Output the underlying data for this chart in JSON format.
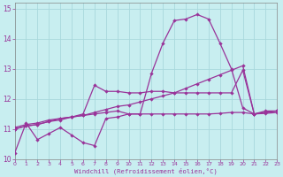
{
  "bg_color": "#c8eef0",
  "grid_color": "#a8d8dc",
  "line_color": "#993399",
  "xlabel": "Windchill (Refroidissement éolien,°C)",
  "xlim": [
    0,
    23
  ],
  "ylim": [
    10,
    15.2
  ],
  "xticks": [
    0,
    1,
    2,
    3,
    4,
    5,
    6,
    7,
    8,
    9,
    10,
    11,
    12,
    13,
    14,
    15,
    16,
    17,
    18,
    19,
    20,
    21,
    22,
    23
  ],
  "yticks": [
    10,
    11,
    12,
    13,
    14,
    15
  ],
  "curve1_x": [
    0,
    1,
    2,
    3,
    4,
    5,
    6,
    7,
    8,
    9,
    10,
    11,
    12,
    13,
    14,
    15,
    16,
    17,
    18,
    19,
    20,
    21,
    22,
    23
  ],
  "curve1_y": [
    10.2,
    11.2,
    10.65,
    10.85,
    11.05,
    10.8,
    10.55,
    10.45,
    11.35,
    11.4,
    11.5,
    11.5,
    12.85,
    13.85,
    14.6,
    14.65,
    14.8,
    14.65,
    13.85,
    13.0,
    11.7,
    11.5,
    11.6,
    11.6
  ],
  "curve2_x": [
    0,
    1,
    2,
    3,
    4,
    5,
    6,
    7,
    8,
    9,
    10,
    11,
    12,
    13,
    14,
    15,
    16,
    17,
    18,
    19,
    20,
    21,
    22,
    23
  ],
  "curve2_y": [
    11.05,
    11.15,
    11.2,
    11.3,
    11.35,
    11.4,
    11.5,
    12.45,
    12.25,
    12.25,
    12.2,
    12.2,
    12.25,
    12.25,
    12.2,
    12.2,
    12.2,
    12.2,
    12.2,
    12.2,
    12.95,
    11.5,
    11.55,
    11.6
  ],
  "curve3_x": [
    0,
    1,
    2,
    3,
    4,
    5,
    6,
    7,
    8,
    9,
    10,
    11,
    12,
    13,
    14,
    15,
    16,
    17,
    18,
    19,
    20,
    21,
    22,
    23
  ],
  "curve3_y": [
    11.0,
    11.1,
    11.15,
    11.25,
    11.3,
    11.4,
    11.45,
    11.55,
    11.65,
    11.75,
    11.8,
    11.9,
    12.0,
    12.1,
    12.2,
    12.35,
    12.5,
    12.65,
    12.8,
    12.95,
    13.1,
    11.5,
    11.55,
    11.6
  ],
  "curve4_x": [
    0,
    1,
    2,
    3,
    4,
    5,
    6,
    7,
    8,
    9,
    10,
    11,
    12,
    13,
    14,
    15,
    16,
    17,
    18,
    19,
    20,
    21,
    22,
    23
  ],
  "curve4_y": [
    11.0,
    11.1,
    11.15,
    11.25,
    11.35,
    11.4,
    11.45,
    11.5,
    11.55,
    11.6,
    11.5,
    11.5,
    11.5,
    11.5,
    11.5,
    11.5,
    11.5,
    11.5,
    11.52,
    11.55,
    11.55,
    11.5,
    11.52,
    11.55
  ]
}
